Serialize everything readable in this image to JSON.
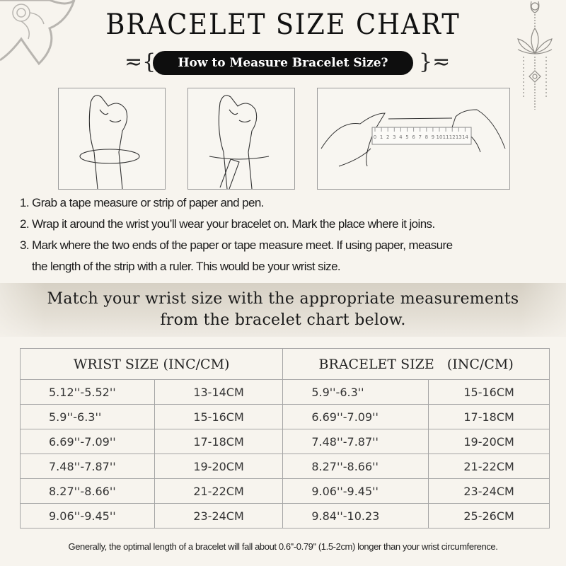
{
  "title": "BRACELET SIZE CHART",
  "subtitle": "How to Measure Bracelet Size?",
  "ruler_ticks": [
    "0",
    "1",
    "2",
    "3",
    "4",
    "5",
    "6",
    "7",
    "8",
    "9",
    "10",
    "11",
    "12",
    "13",
    "14"
  ],
  "steps": [
    "1. Grab a tape measure or strip of paper and pen.",
    "2. Wrap it around the wrist you’ll wear your bracelet on. Mark the place where it joins.",
    "3. Mark where the two ends of the paper or tape measure meet. If using paper, measure",
    "the length of the strip with a ruler. This would be your wrist size."
  ],
  "banner": {
    "line1": "Match your wrist size with the appropriate measurements",
    "line2": "from the bracelet chart below."
  },
  "table": {
    "headers": [
      "WRIST SIZE (INC/CM)",
      "BRACELET SIZE   (INC/CM)"
    ],
    "rows": [
      [
        "5.12''-5.52''",
        "13-14CM",
        "5.9''-6.3''",
        "15-16CM"
      ],
      [
        "5.9''-6.3''",
        "15-16CM",
        "6.69''-7.09''",
        "17-18CM"
      ],
      [
        "6.69''-7.09''",
        "17-18CM",
        "7.48''-7.87''",
        "19-20CM"
      ],
      [
        "7.48''-7.87''",
        "19-20CM",
        "8.27''-8.66''",
        "21-22CM"
      ],
      [
        "8.27''-8.66''",
        "21-22CM",
        "9.06''-9.45''",
        "23-24CM"
      ],
      [
        "9.06''-9.45''",
        "23-24CM",
        "9.84''-10.23",
        "25-26CM"
      ]
    ]
  },
  "note": "Generally, the optimal length of a bracelet will fall about 0.6''-0.79'' (1.5-2cm) longer than your wrist circumference.",
  "colors": {
    "background": "#f7f4ee",
    "pill": "#0e0e0e",
    "ornament": "#b5b2ad",
    "border": "#a5a5a5"
  }
}
